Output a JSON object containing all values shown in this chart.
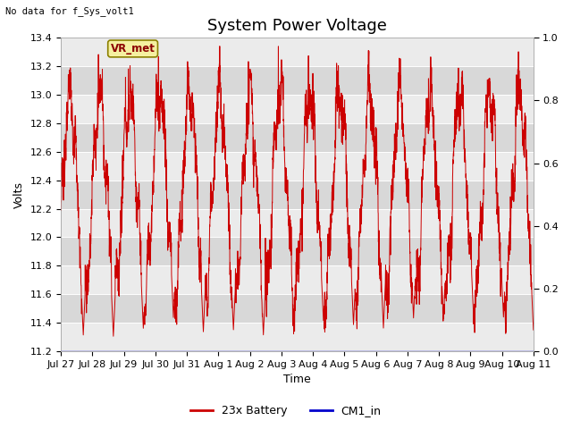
{
  "title": "System Power Voltage",
  "no_data_label": "No data for f_Sys_volt1",
  "ylabel": "Volts",
  "xlabel": "Time",
  "ylim_left": [
    11.2,
    13.4
  ],
  "ylim_right": [
    0.0,
    1.0
  ],
  "background_color": "#ffffff",
  "plot_bg_color": "#e8e8e8",
  "band_color_light": "#ebebeb",
  "band_color_dark": "#d8d8d8",
  "grid_color": "#cccccc",
  "line_color_battery": "#cc0000",
  "line_color_cm1": "#0000cc",
  "legend_battery": "23x Battery",
  "legend_cm1": "CM1_in",
  "vr_met_label": "VR_met",
  "x_tick_labels": [
    "Jul 27",
    "Jul 28",
    "Jul 29",
    "Jul 30",
    "Jul 31",
    "Aug 1",
    "Aug 2",
    "Aug 3",
    "Aug 4",
    "Aug 5",
    "Aug 6",
    "Aug 7",
    "Aug 8",
    "Aug 9",
    "Aug 10",
    "Aug 11"
  ],
  "right_yticks": [
    0.0,
    0.2,
    0.4,
    0.6,
    0.8,
    1.0
  ],
  "right_ytick_labels": [
    "0.0",
    "0.2",
    "0.4",
    "0.6",
    "0.8",
    "1.0"
  ],
  "left_yticks": [
    11.2,
    11.4,
    11.6,
    11.8,
    12.0,
    12.2,
    12.4,
    12.6,
    12.8,
    13.0,
    13.2,
    13.4
  ],
  "title_fontsize": 13,
  "label_fontsize": 9,
  "tick_fontsize": 8,
  "figsize": [
    6.4,
    4.8
  ],
  "dpi": 100
}
